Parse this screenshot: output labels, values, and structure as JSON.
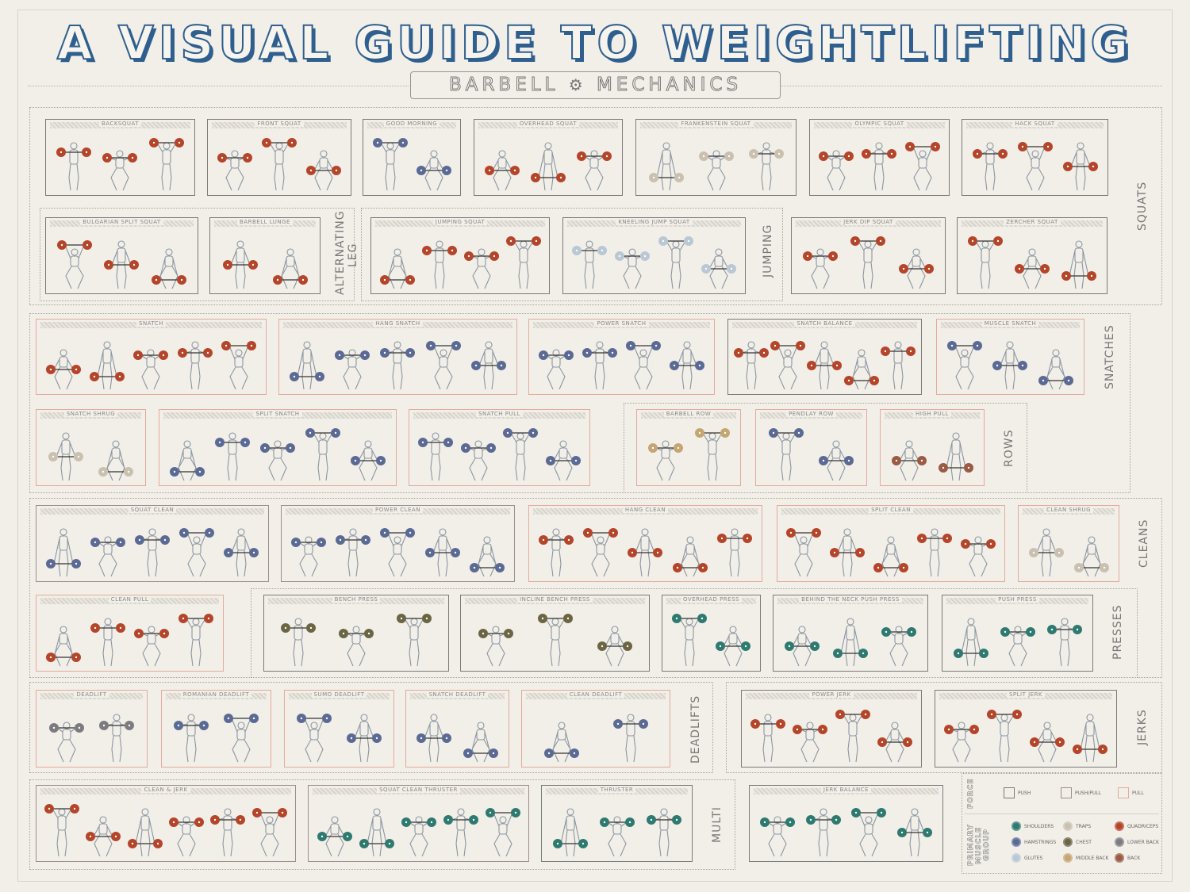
{
  "title": "A VISUAL GUIDE TO WEIGHTLIFTING",
  "subtitle_left": "BARBELL",
  "subtitle_right": "MECHANICS",
  "subtitle_icon": "gear-icon",
  "muscle_colors": {
    "shoulders": "#2e7a70",
    "hamstrings": "#5b6a94",
    "glutes": "#b9c8d4",
    "traps": "#c9c0b0",
    "chest": "#6b6544",
    "middle_back": "#c5a673",
    "quadriceps": "#b5452a",
    "lower_back": "#7c7c80",
    "back": "#9a5a44"
  },
  "force_colors": {
    "push": "#7a7a7a",
    "pushpull": "#9b8f8c",
    "pull": "#e3aa9c"
  },
  "groups": {
    "squats": "SQUATS",
    "alternating_leg": "ALTERNATING LEG",
    "jumping": "JUMPING",
    "snatches": "SNATCHES",
    "rows": "ROWS",
    "cleans": "CLEANS",
    "presses": "PRESSES",
    "deadlifts": "DEADLIFTS",
    "jerks": "JERKS",
    "multi": "MULTI"
  },
  "exercises": [
    {
      "name": "BACKSQUAT",
      "muscle": "quadriceps",
      "force": "push",
      "figures": 3
    },
    {
      "name": "FRONT SQUAT",
      "muscle": "quadriceps",
      "force": "push",
      "figures": 3
    },
    {
      "name": "GOOD MORNING",
      "muscle": "hamstrings",
      "force": "push",
      "figures": 2
    },
    {
      "name": "OVERHEAD SQUAT",
      "muscle": "quadriceps",
      "force": "push",
      "figures": 3
    },
    {
      "name": "FRANKENSTEIN SQUAT",
      "muscle": "traps",
      "force": "push",
      "figures": 3
    },
    {
      "name": "OLYMPIC SQUAT",
      "muscle": "quadriceps",
      "force": "push",
      "figures": 3
    },
    {
      "name": "HACK SQUAT",
      "muscle": "quadriceps",
      "force": "push",
      "figures": 3
    },
    {
      "name": "BULGARIAN SPLIT SQUAT",
      "muscle": "quadriceps",
      "force": "push",
      "figures": 3
    },
    {
      "name": "BARBELL LUNGE",
      "muscle": "quadriceps",
      "force": "push",
      "figures": 2
    },
    {
      "name": "JUMPING SQUAT",
      "muscle": "quadriceps",
      "force": "push",
      "figures": 4
    },
    {
      "name": "KNEELING JUMP SQUAT",
      "muscle": "glutes",
      "force": "push",
      "figures": 4
    },
    {
      "name": "JERK DIP SQUAT",
      "muscle": "quadriceps",
      "force": "push",
      "figures": 3
    },
    {
      "name": "ZERCHER SQUAT",
      "muscle": "quadriceps",
      "force": "push",
      "figures": 3
    },
    {
      "name": "SNATCH",
      "muscle": "quadriceps",
      "force": "pull",
      "figures": 5
    },
    {
      "name": "HANG SNATCH",
      "muscle": "hamstrings",
      "force": "pull",
      "figures": 5
    },
    {
      "name": "POWER SNATCH",
      "muscle": "hamstrings",
      "force": "pull",
      "figures": 4
    },
    {
      "name": "SNATCH BALANCE",
      "muscle": "quadriceps",
      "force": "push",
      "figures": 5
    },
    {
      "name": "MUSCLE SNATCH",
      "muscle": "hamstrings",
      "force": "pull",
      "figures": 3
    },
    {
      "name": "SNATCH SHRUG",
      "muscle": "traps",
      "force": "pull",
      "figures": 2
    },
    {
      "name": "SPLIT SNATCH",
      "muscle": "hamstrings",
      "force": "pull",
      "figures": 5
    },
    {
      "name": "SNATCH PULL",
      "muscle": "hamstrings",
      "force": "pull",
      "figures": 4
    },
    {
      "name": "BARBELL ROW",
      "muscle": "middle_back",
      "force": "pull",
      "figures": 2
    },
    {
      "name": "PENDLAY ROW",
      "muscle": "hamstrings",
      "force": "pull",
      "figures": 2
    },
    {
      "name": "HIGH PULL",
      "muscle": "back",
      "force": "pull",
      "figures": 2
    },
    {
      "name": "SQUAT CLEAN",
      "muscle": "hamstrings",
      "force": "pushpull",
      "figures": 5
    },
    {
      "name": "POWER CLEAN",
      "muscle": "hamstrings",
      "force": "pushpull",
      "figures": 5
    },
    {
      "name": "HANG CLEAN",
      "muscle": "quadriceps",
      "force": "pull",
      "figures": 5
    },
    {
      "name": "SPLIT CLEAN",
      "muscle": "quadriceps",
      "force": "pull",
      "figures": 5
    },
    {
      "name": "CLEAN SHRUG",
      "muscle": "traps",
      "force": "pull",
      "figures": 2
    },
    {
      "name": "CLEAN PULL",
      "muscle": "quadriceps",
      "force": "pull",
      "figures": 4
    },
    {
      "name": "BENCH PRESS",
      "muscle": "chest",
      "force": "push",
      "figures": 3
    },
    {
      "name": "INCLINE BENCH PRESS",
      "muscle": "chest",
      "force": "push",
      "figures": 3
    },
    {
      "name": "OVERHEAD PRESS",
      "muscle": "shoulders",
      "force": "push",
      "figures": 2
    },
    {
      "name": "BEHIND THE NECK PUSH PRESS",
      "muscle": "shoulders",
      "force": "push",
      "figures": 3
    },
    {
      "name": "PUSH PRESS",
      "muscle": "shoulders",
      "force": "push",
      "figures": 3
    },
    {
      "name": "DEADLIFT",
      "muscle": "lower_back",
      "force": "pull",
      "figures": 2
    },
    {
      "name": "ROMANIAN DEADLIFT",
      "muscle": "hamstrings",
      "force": "pull",
      "figures": 2
    },
    {
      "name": "SUMO DEADLIFT",
      "muscle": "hamstrings",
      "force": "pull",
      "figures": 2
    },
    {
      "name": "SNATCH DEADLIFT",
      "muscle": "hamstrings",
      "force": "pull",
      "figures": 2
    },
    {
      "name": "CLEAN DEADLIFT",
      "muscle": "hamstrings",
      "force": "pull",
      "figures": 2
    },
    {
      "name": "POWER JERK",
      "muscle": "quadriceps",
      "force": "push",
      "figures": 4
    },
    {
      "name": "SPLIT JERK",
      "muscle": "quadriceps",
      "force": "push",
      "figures": 4
    },
    {
      "name": "CLEAN & JERK",
      "muscle": "quadriceps",
      "force": "pushpull",
      "figures": 6
    },
    {
      "name": "SQUAT CLEAN THRUSTER",
      "muscle": "shoulders",
      "force": "pushpull",
      "figures": 5
    },
    {
      "name": "THRUSTER",
      "muscle": "shoulders",
      "force": "push",
      "figures": 3
    },
    {
      "name": "JERK BALANCE",
      "muscle": "shoulders",
      "force": "push",
      "figures": 4
    }
  ],
  "legend": {
    "force_title": "FORCE",
    "force_items": [
      {
        "label": "PUSH",
        "force": "push"
      },
      {
        "label": "PUSH/PULL",
        "force": "pushpull"
      },
      {
        "label": "PULL",
        "force": "pull"
      }
    ],
    "muscle_title": "PRIMARY MUSCLE GROUP",
    "muscle_items": [
      {
        "label": "SHOULDERS",
        "muscle": "shoulders"
      },
      {
        "label": "TRAPS",
        "muscle": "traps"
      },
      {
        "label": "QUADRICEPS",
        "muscle": "quadriceps"
      },
      {
        "label": "HAMSTRINGS",
        "muscle": "hamstrings"
      },
      {
        "label": "CHEST",
        "muscle": "chest"
      },
      {
        "label": "LOWER BACK",
        "muscle": "lower_back"
      },
      {
        "label": "GLUTES",
        "muscle": "glutes"
      },
      {
        "label": "MIDDLE BACK",
        "muscle": "middle_back"
      },
      {
        "label": "BACK",
        "muscle": "back"
      }
    ]
  }
}
